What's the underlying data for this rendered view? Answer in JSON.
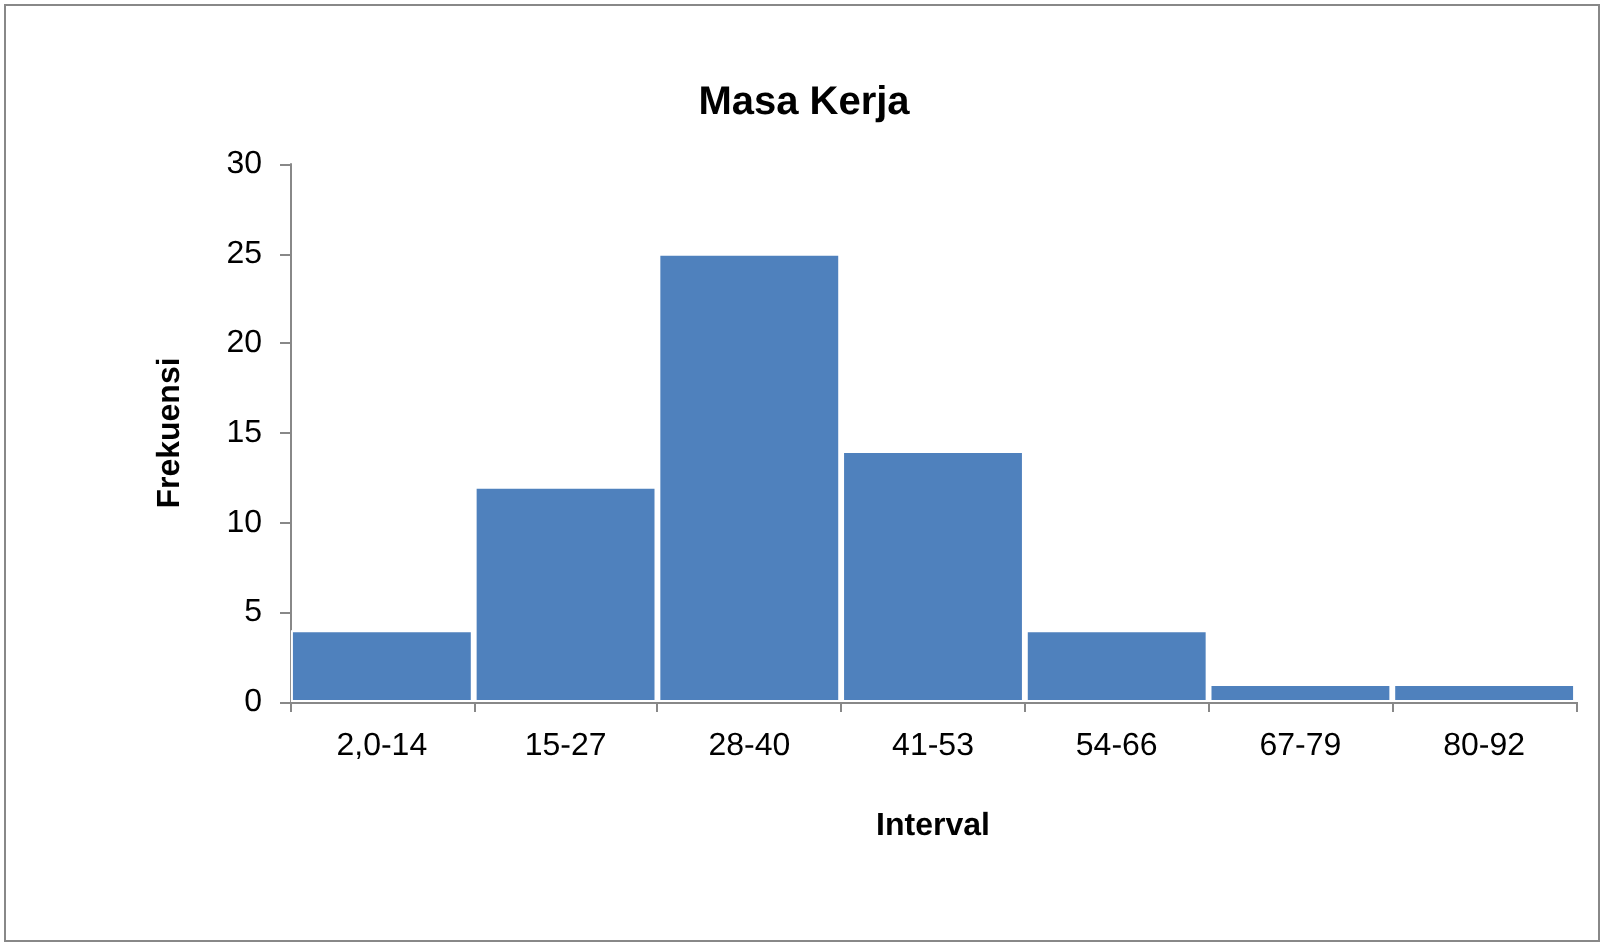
{
  "chart_data": {
    "type": "bar",
    "title": "Masa Kerja",
    "xlabel": "Interval",
    "ylabel": "Frekuensi",
    "categories": [
      "2,0-14",
      "15-27",
      "28-40",
      "41-53",
      "54-66",
      "67-79",
      "80-92"
    ],
    "values": [
      4,
      12,
      25,
      14,
      4,
      1,
      1
    ],
    "color": "#4f81bd",
    "ylim": [
      0,
      30
    ],
    "yticks": [
      0,
      5,
      10,
      15,
      20,
      25,
      30
    ]
  }
}
